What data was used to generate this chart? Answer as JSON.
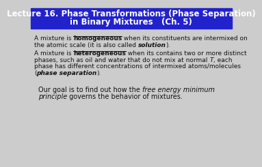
{
  "title_line1": "Lecture 16. Phase Transformations (Phase Separation)",
  "title_line2": "in Binary Mixtures   (Ch. 5)",
  "title_bg_color": "#2222cc",
  "title_text_color": "#ffffff",
  "body_bg_color": "#cccccc",
  "text_color": "#111111",
  "font_size_title": 8.5,
  "font_size_body": 6.5,
  "font_size_para3": 7.0
}
